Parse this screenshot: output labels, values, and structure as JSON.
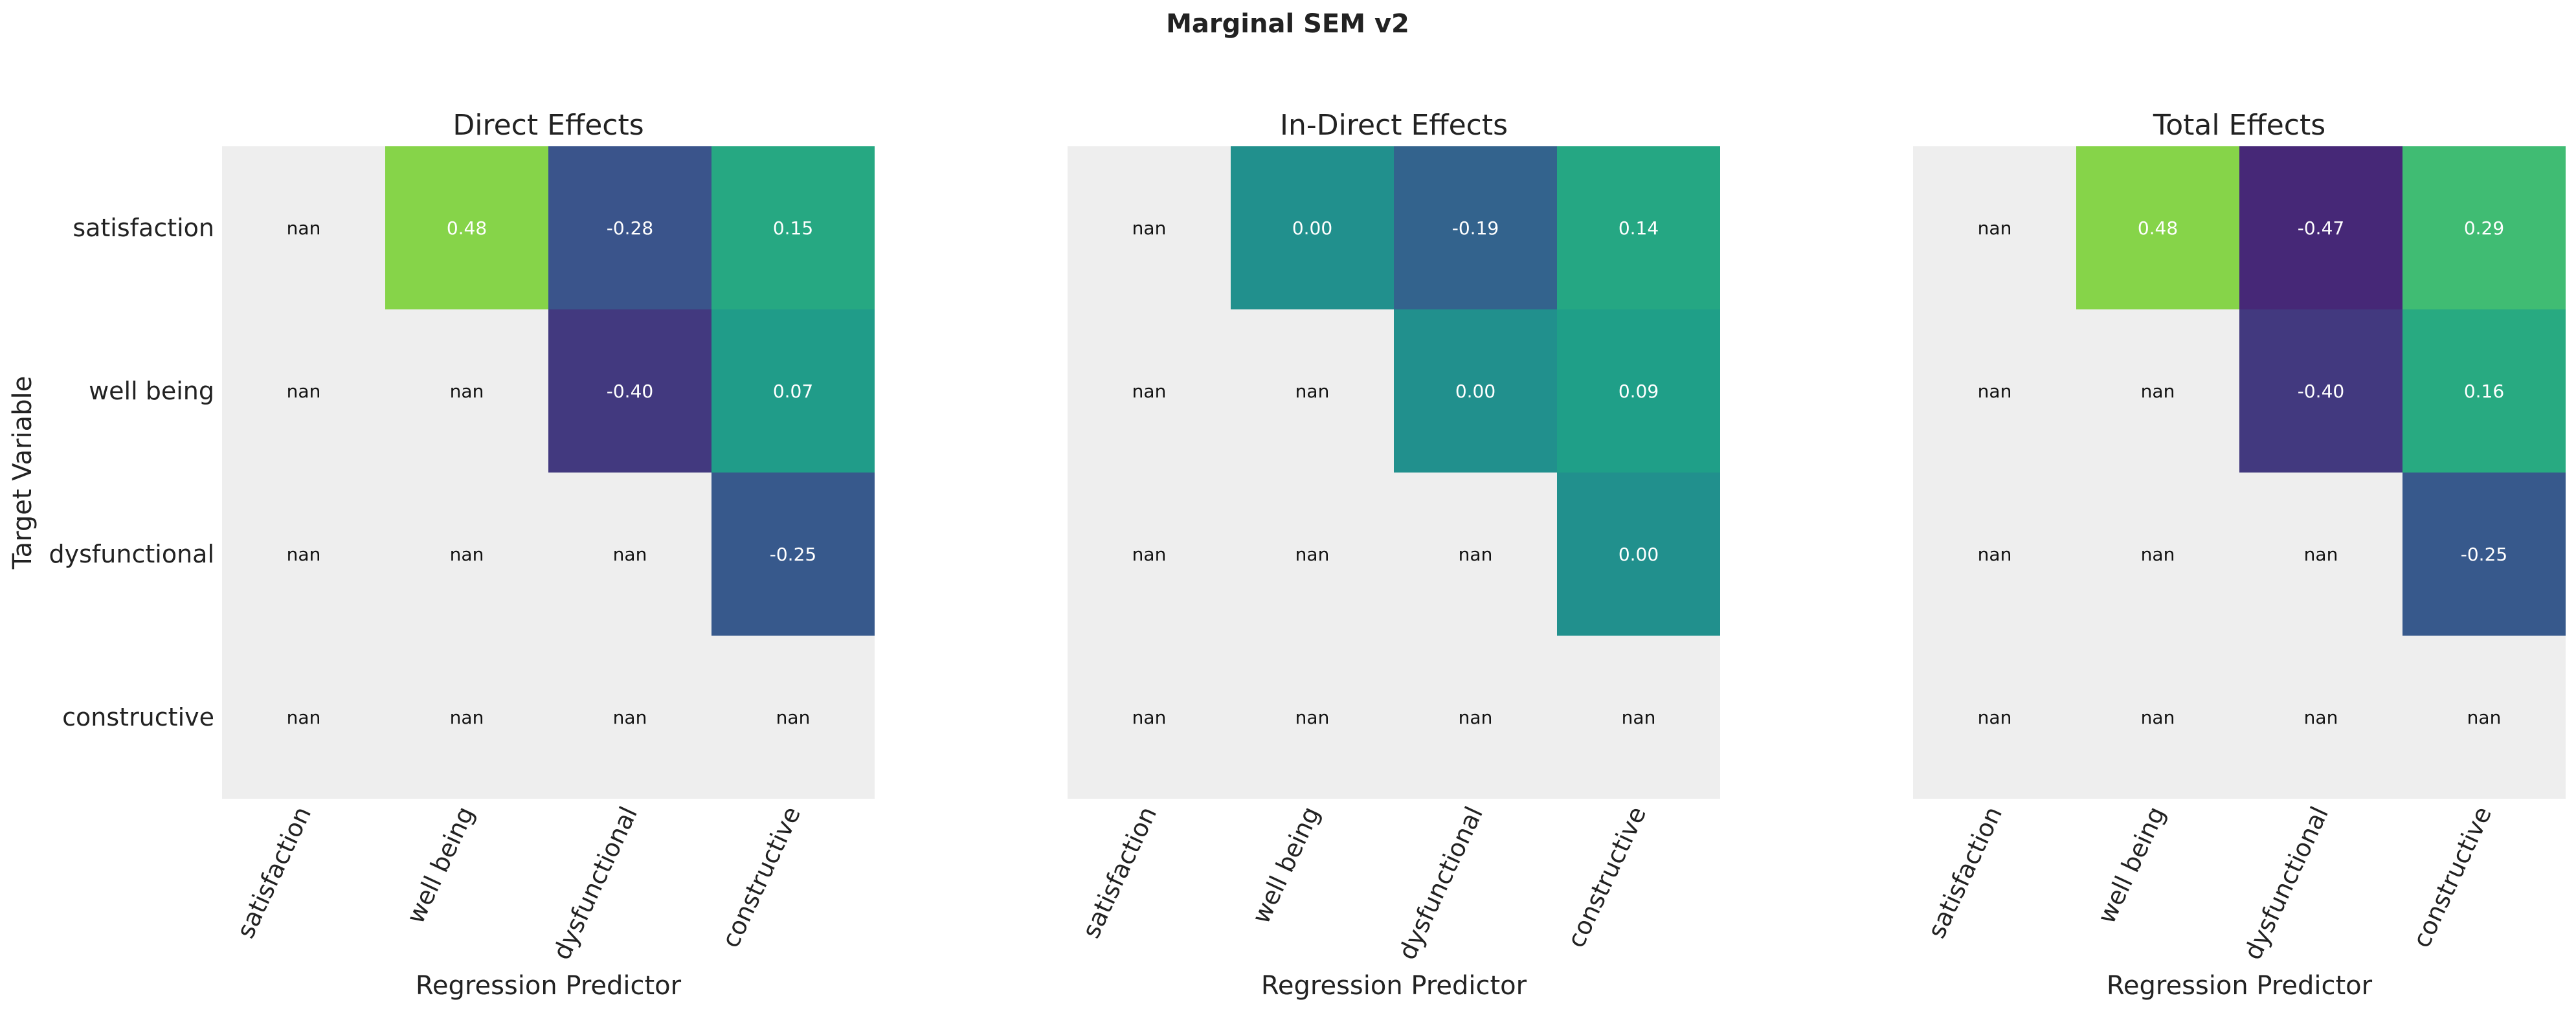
{
  "figure": {
    "title": "Marginal SEM v2"
  },
  "chart_data": [
    {
      "type": "heatmap",
      "title": "Direct Effects",
      "xlabel": "Regression Predictor",
      "ylabel": "Target Variable",
      "x_categories": [
        "satisfaction",
        "well being",
        "dysfunctional",
        "constructive"
      ],
      "y_categories": [
        "satisfaction",
        "well being",
        "dysfunctional",
        "constructive"
      ],
      "values": [
        [
          null,
          0.48,
          -0.28,
          0.15
        ],
        [
          null,
          null,
          -0.4,
          0.07
        ],
        [
          null,
          null,
          null,
          -0.25
        ],
        [
          null,
          null,
          null,
          null
        ]
      ],
      "missing_label": "nan",
      "missing_color": "#eeeeee",
      "colormap": "viridis",
      "grid": false
    },
    {
      "type": "heatmap",
      "title": "In-Direct Effects",
      "xlabel": "Regression Predictor",
      "ylabel": "",
      "x_categories": [
        "satisfaction",
        "well being",
        "dysfunctional",
        "constructive"
      ],
      "y_categories": [
        "satisfaction",
        "well being",
        "dysfunctional",
        "constructive"
      ],
      "values": [
        [
          null,
          0.0,
          -0.19,
          0.14
        ],
        [
          null,
          null,
          0.0,
          0.09
        ],
        [
          null,
          null,
          null,
          0.0
        ],
        [
          null,
          null,
          null,
          null
        ]
      ],
      "missing_label": "nan",
      "missing_color": "#eeeeee",
      "colormap": "viridis",
      "grid": false
    },
    {
      "type": "heatmap",
      "title": "Total Effects",
      "xlabel": "Regression Predictor",
      "ylabel": "",
      "x_categories": [
        "satisfaction",
        "well being",
        "dysfunctional",
        "constructive"
      ],
      "y_categories": [
        "satisfaction",
        "well being",
        "dysfunctional",
        "constructive"
      ],
      "values": [
        [
          null,
          0.48,
          -0.47,
          0.29
        ],
        [
          null,
          null,
          -0.4,
          0.16
        ],
        [
          null,
          null,
          null,
          -0.25
        ],
        [
          null,
          null,
          null,
          null
        ]
      ],
      "missing_label": "nan",
      "missing_color": "#eeeeee",
      "colormap": "viridis",
      "grid": false
    }
  ]
}
